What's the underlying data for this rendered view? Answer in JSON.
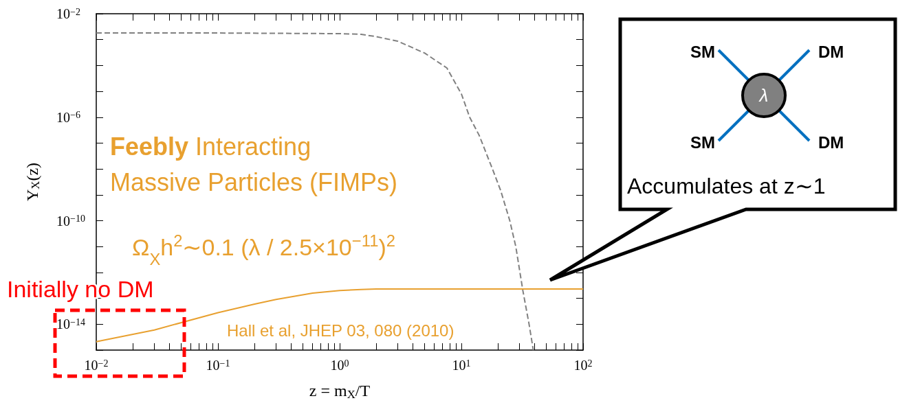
{
  "chart_data": {
    "type": "line",
    "xlabel": "z = m$_{X}$/T",
    "ylabel": "Y$_{X}$(z)",
    "log": "xy",
    "grid": false,
    "marker": "none",
    "xlim": [
      0.01,
      100
    ],
    "ylim": [
      1e-15,
      0.01
    ],
    "xticks": [
      {
        "value": 0.01,
        "label": "10$^{−2}$"
      },
      {
        "value": 0.02,
        "label": null
      },
      {
        "value": 0.03,
        "label": null
      },
      {
        "value": 0.04,
        "label": null
      },
      {
        "value": 0.05,
        "label": null
      },
      {
        "value": 0.06,
        "label": null
      },
      {
        "value": 0.07,
        "label": null
      },
      {
        "value": 0.08,
        "label": null
      },
      {
        "value": 0.09,
        "label": null
      },
      {
        "value": 0.1,
        "label": "10$^{−1}$"
      },
      {
        "value": 0.2,
        "label": null
      },
      {
        "value": 0.3,
        "label": null
      },
      {
        "value": 0.4,
        "label": null
      },
      {
        "value": 0.5,
        "label": null
      },
      {
        "value": 0.6,
        "label": null
      },
      {
        "value": 0.7,
        "label": null
      },
      {
        "value": 0.8,
        "label": null
      },
      {
        "value": 0.9,
        "label": null
      },
      {
        "value": 1,
        "label": "10$^{0}$"
      },
      {
        "value": 2,
        "label": null
      },
      {
        "value": 3,
        "label": null
      },
      {
        "value": 4,
        "label": null
      },
      {
        "value": 5,
        "label": null
      },
      {
        "value": 6,
        "label": null
      },
      {
        "value": 7,
        "label": null
      },
      {
        "value": 8,
        "label": null
      },
      {
        "value": 9,
        "label": null
      },
      {
        "value": 10,
        "label": "10$^{1}$"
      },
      {
        "value": 20,
        "label": null
      },
      {
        "value": 30,
        "label": null
      },
      {
        "value": 40,
        "label": null
      },
      {
        "value": 50,
        "label": null
      },
      {
        "value": 60,
        "label": null
      },
      {
        "value": 70,
        "label": null
      },
      {
        "value": 80,
        "label": null
      },
      {
        "value": 90,
        "label": null
      },
      {
        "value": 100,
        "label": "10$^{2}$"
      }
    ],
    "yticks": [
      {
        "value": 1e-15,
        "label": null
      },
      {
        "value": 1e-14,
        "label": "10$^{−14}$"
      },
      {
        "value": 1e-13,
        "label": null
      },
      {
        "value": 1e-12,
        "label": null
      },
      {
        "value": 1e-11,
        "label": null
      },
      {
        "value": 1e-10,
        "label": "10$^{−10}$"
      },
      {
        "value": 1e-09,
        "label": null
      },
      {
        "value": 1e-08,
        "label": null
      },
      {
        "value": 1e-07,
        "label": null
      },
      {
        "value": 1e-06,
        "label": "10$^{−6}$"
      },
      {
        "value": 1e-05,
        "label": null
      },
      {
        "value": 0.0001,
        "label": null
      },
      {
        "value": 0.001,
        "label": null
      },
      {
        "value": 0.01,
        "label": "10$^{−2}$"
      }
    ],
    "series": [
      {
        "color": "#808080",
        "line_style": "dashed",
        "x": [
          0.01,
          0.1,
          1,
          1.5,
          2,
          3,
          5,
          7.6,
          10,
          11.7,
          14,
          18,
          21,
          25,
          28,
          32,
          36,
          39
        ],
        "values": [
          0.0018,
          0.0018,
          0.0017,
          0.0016,
          0.0013,
          0.00087,
          0.0003,
          8e-05,
          8e-06,
          1e-06,
          2e-07,
          1e-08,
          1.5e-09,
          1e-10,
          1e-11,
          2e-13,
          1e-14,
          1e-15
        ]
      },
      {
        "color": "#e8a02f",
        "line_style": "solid",
        "x": [
          0.01,
          0.03,
          0.1,
          0.2,
          0.3,
          0.6,
          1,
          1.5,
          2,
          100
        ],
        "values": [
          2.1e-15,
          6e-15,
          2.8e-14,
          6e-14,
          9e-14,
          1.6e-13,
          2e-13,
          2.2e-13,
          2.3e-13,
          2.3e-13
        ]
      }
    ],
    "annotations": [
      "Feebly Interacting",
      "Massive Particles (FIMPs)",
      "Ω$_{X}$h$^{2}$∼0.1 (λ / 2.5×10$^{−11}$)$^{2}$",
      "Hall et al, JHEP 03, 080 (2010)",
      "Initially no DM",
      "SM",
      "DM",
      "SM",
      "DM",
      "λ",
      "Accumulates at z∼1"
    ]
  }
}
